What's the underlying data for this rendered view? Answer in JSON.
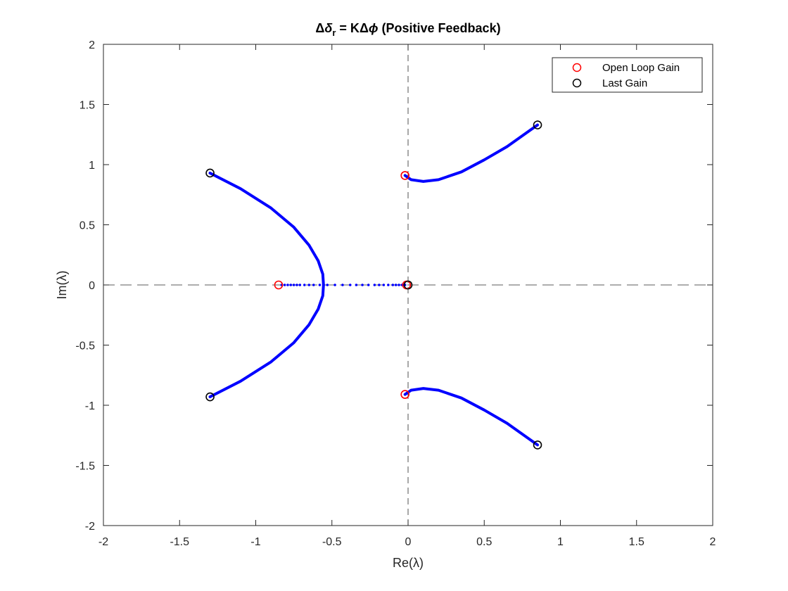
{
  "chart_data": {
    "type": "scatter",
    "title": {
      "delta1": "Δ",
      "delta_r": "δ",
      "sub_r": "r",
      "mid": " = K",
      "delta2": "Δ",
      "phi": "ϕ",
      "tail": " (Positive Feedback)"
    },
    "xlabel": "Re(λ)",
    "ylabel": "Im(λ)",
    "xlim": [
      -2,
      2
    ],
    "ylim": [
      -2,
      2
    ],
    "xticks": [
      -2,
      -1.5,
      -1,
      -0.5,
      0,
      0.5,
      1,
      1.5,
      2
    ],
    "yticks": [
      -2,
      -1.5,
      -1,
      -0.5,
      0,
      0.5,
      1,
      1.5,
      2
    ],
    "xtick_labels": [
      "-2",
      "-1.5",
      "-1",
      "-0.5",
      "0",
      "0.5",
      "1",
      "1.5",
      "2"
    ],
    "ytick_labels": [
      "-2",
      "-1.5",
      "-1",
      "-0.5",
      "0",
      "0.5",
      "1",
      "1.5",
      "2"
    ],
    "grid": false,
    "reference_lines": {
      "x": 0,
      "y": 0,
      "style": "dashed"
    },
    "legend": {
      "position": "top-right",
      "entries": [
        {
          "label": "Open Loop Gain",
          "color": "#ff0000",
          "marker": "circle"
        },
        {
          "label": "Last Gain",
          "color": "#000000",
          "marker": "circle"
        }
      ]
    },
    "locus_color": "#0000ff",
    "series": [
      {
        "name": "Open Loop Gain",
        "color": "#ff0000",
        "points": [
          [
            -0.85,
            0
          ],
          [
            -0.02,
            0.91
          ],
          [
            -0.02,
            -0.91
          ],
          [
            -0.01,
            0
          ]
        ]
      },
      {
        "name": "Last Gain",
        "color": "#000000",
        "points": [
          [
            -1.3,
            0.93
          ],
          [
            -1.3,
            -0.93
          ],
          [
            0.85,
            1.33
          ],
          [
            0.85,
            -1.33
          ],
          [
            0.0,
            0
          ]
        ]
      }
    ],
    "loci": [
      {
        "points": [
          [
            -1.3,
            0.93
          ],
          [
            -1.1,
            0.8
          ],
          [
            -0.9,
            0.64
          ],
          [
            -0.75,
            0.48
          ],
          [
            -0.65,
            0.33
          ],
          [
            -0.59,
            0.2
          ],
          [
            -0.56,
            0.09
          ],
          [
            -0.555,
            0.0
          ]
        ]
      },
      {
        "points": [
          [
            -1.3,
            -0.93
          ],
          [
            -1.1,
            -0.8
          ],
          [
            -0.9,
            -0.64
          ],
          [
            -0.75,
            -0.48
          ],
          [
            -0.65,
            -0.33
          ],
          [
            -0.59,
            -0.2
          ],
          [
            -0.56,
            -0.09
          ],
          [
            -0.555,
            0.0
          ]
        ]
      },
      {
        "points": [
          [
            -0.02,
            0.91
          ],
          [
            0.02,
            0.875
          ],
          [
            0.1,
            0.86
          ],
          [
            0.2,
            0.875
          ],
          [
            0.35,
            0.94
          ],
          [
            0.5,
            1.04
          ],
          [
            0.65,
            1.15
          ],
          [
            0.85,
            1.33
          ]
        ]
      },
      {
        "points": [
          [
            -0.02,
            -0.91
          ],
          [
            0.02,
            -0.875
          ],
          [
            0.1,
            -0.86
          ],
          [
            0.2,
            -0.875
          ],
          [
            0.35,
            -0.94
          ],
          [
            0.5,
            -1.04
          ],
          [
            0.65,
            -1.15
          ],
          [
            0.85,
            -1.33
          ]
        ]
      },
      {
        "dots": true,
        "points": [
          [
            -0.83,
            0
          ],
          [
            -0.81,
            0
          ],
          [
            -0.79,
            0
          ],
          [
            -0.77,
            0
          ],
          [
            -0.75,
            0
          ],
          [
            -0.73,
            0
          ],
          [
            -0.71,
            0
          ],
          [
            -0.68,
            0
          ],
          [
            -0.65,
            0
          ],
          [
            -0.62,
            0
          ],
          [
            -0.58,
            0
          ],
          [
            -0.53,
            0
          ],
          [
            -0.48,
            0
          ],
          [
            -0.43,
            0
          ],
          [
            -0.38,
            0
          ],
          [
            -0.34,
            0
          ],
          [
            -0.3,
            0
          ],
          [
            -0.26,
            0
          ],
          [
            -0.22,
            0
          ],
          [
            -0.19,
            0
          ],
          [
            -0.16,
            0
          ],
          [
            -0.13,
            0
          ],
          [
            -0.1,
            0
          ],
          [
            -0.08,
            0
          ],
          [
            -0.06,
            0
          ],
          [
            -0.04,
            0
          ],
          [
            -0.03,
            0
          ],
          [
            -0.02,
            0
          ]
        ]
      }
    ]
  }
}
